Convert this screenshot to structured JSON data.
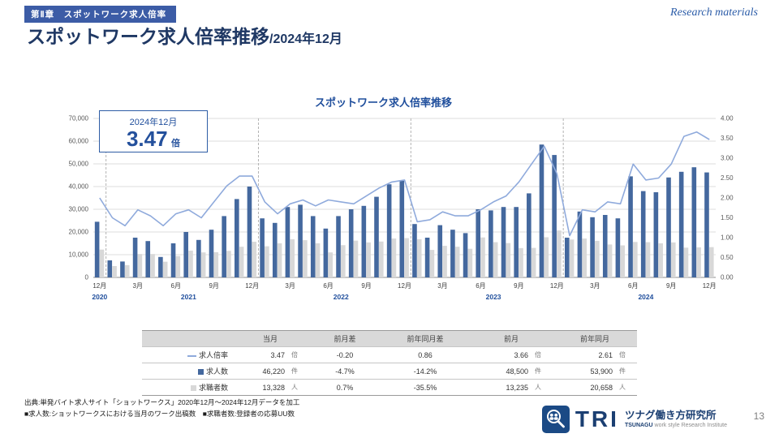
{
  "page": {
    "badge": "第Ⅱ章　スポットワーク求人倍率",
    "watermark": "Research materials",
    "title": "スポットワーク求人倍率推移",
    "title_suffix": "/2024年12月",
    "page_number": "13"
  },
  "chart": {
    "title": "スポットワーク求人倍率推移",
    "callout_period": "2024年12月",
    "callout_value": "3.47",
    "callout_unit": "倍"
  },
  "chart_data": {
    "type": "combo",
    "title": "スポットワーク求人倍率推移",
    "period_start": "2020年12月",
    "period_end": "2024年12月",
    "x_tick_every": 3,
    "x_tick_labels": [
      "12月",
      "3月",
      "6月",
      "9月",
      "12月",
      "3月",
      "6月",
      "9月",
      "12月",
      "3月",
      "6月",
      "9月",
      "12月",
      "3月",
      "6月",
      "9月",
      "12月"
    ],
    "year_labels": [
      {
        "text": "2020",
        "index": 0
      },
      {
        "text": "2021",
        "index": 7
      },
      {
        "text": "2022",
        "index": 19
      },
      {
        "text": "2023",
        "index": 31
      },
      {
        "text": "2024",
        "index": 43
      }
    ],
    "year_separators_after_index": [
      0,
      12,
      24,
      36
    ],
    "left_axis": {
      "min": 0,
      "max": 70000,
      "step": 10000
    },
    "right_axis": {
      "min": 0,
      "max": 4,
      "step": 0.5
    },
    "series": [
      {
        "name": "求人数",
        "type": "bar",
        "axis": "left",
        "color": "#44689e",
        "values": [
          24500,
          7500,
          7000,
          17500,
          16000,
          9000,
          15000,
          20000,
          16500,
          21000,
          27000,
          34500,
          40000,
          26000,
          24000,
          31000,
          32000,
          27000,
          21500,
          27000,
          30000,
          31500,
          35500,
          41000,
          42500,
          23500,
          17500,
          23000,
          21000,
          19500,
          30000,
          29500,
          31000,
          31000,
          37000,
          58500,
          53900,
          17500,
          29000,
          26500,
          27500,
          26000,
          44500,
          38000,
          37500,
          44000,
          46500,
          48500,
          46220
        ]
      },
      {
        "name": "求職者数",
        "type": "bar",
        "axis": "left",
        "color": "#d8d8d8",
        "values": [
          12250,
          5000,
          5400,
          10300,
          10300,
          6900,
          9400,
          11800,
          11000,
          11100,
          11700,
          13500,
          15700,
          13700,
          15000,
          16800,
          16400,
          15000,
          11000,
          14200,
          16200,
          15400,
          15800,
          17100,
          17300,
          16800,
          12100,
          13900,
          13500,
          12600,
          17600,
          15500,
          15100,
          12900,
          13000,
          17700,
          20658,
          16700,
          17100,
          16100,
          14500,
          14100,
          15600,
          15500,
          15000,
          15400,
          13100,
          13235,
          13328
        ]
      },
      {
        "name": "求人倍率",
        "type": "line",
        "axis": "right",
        "color": "#8faadc",
        "values": [
          2.0,
          1.5,
          1.3,
          1.7,
          1.55,
          1.3,
          1.6,
          1.7,
          1.5,
          1.9,
          2.3,
          2.55,
          2.55,
          1.9,
          1.6,
          1.85,
          1.95,
          1.8,
          1.95,
          1.9,
          1.85,
          2.05,
          2.25,
          2.4,
          2.45,
          1.4,
          1.45,
          1.65,
          1.55,
          1.55,
          1.7,
          1.9,
          2.05,
          2.4,
          2.85,
          3.3,
          2.61,
          1.05,
          1.7,
          1.65,
          1.9,
          1.85,
          2.85,
          2.45,
          2.5,
          2.85,
          3.55,
          3.66,
          3.47
        ]
      }
    ]
  },
  "table": {
    "headers": [
      "当月",
      "前月差",
      "前年同月差",
      "前月",
      "前年同月"
    ],
    "rows": [
      {
        "label": "求人倍率",
        "current": "3.47",
        "current_unit": "倍",
        "mom": "-0.20",
        "yoy": "0.86",
        "prev": "3.66",
        "prev_unit": "倍",
        "prev_year": "2.61",
        "prev_year_unit": "倍"
      },
      {
        "label": "求人数",
        "current": "46,220",
        "current_unit": "件",
        "mom": "-4.7%",
        "yoy": "-14.2%",
        "prev": "48,500",
        "prev_unit": "件",
        "prev_year": "53,900",
        "prev_year_unit": "件"
      },
      {
        "label": "求職者数",
        "current": "13,328",
        "current_unit": "人",
        "mom": "0.7%",
        "yoy": "-35.5%",
        "prev": "13,235",
        "prev_unit": "人",
        "prev_year": "20,658",
        "prev_year_unit": "人"
      }
    ]
  },
  "footer": {
    "source_line1": "出典:単発バイト求人サイト「ショットワークス」2020年12月〜2024年12月データを加工",
    "source_line2": "■求人数:ショットワークスにおける当月のワーク出稿数　■求職者数:登録者の応募UU数"
  },
  "logo": {
    "tri": "TRI",
    "name_jp": "ツナグ働き方研究所",
    "en_1": "TSUNAGU",
    "en_2": " work style ",
    "en_3": "Research Institute"
  }
}
